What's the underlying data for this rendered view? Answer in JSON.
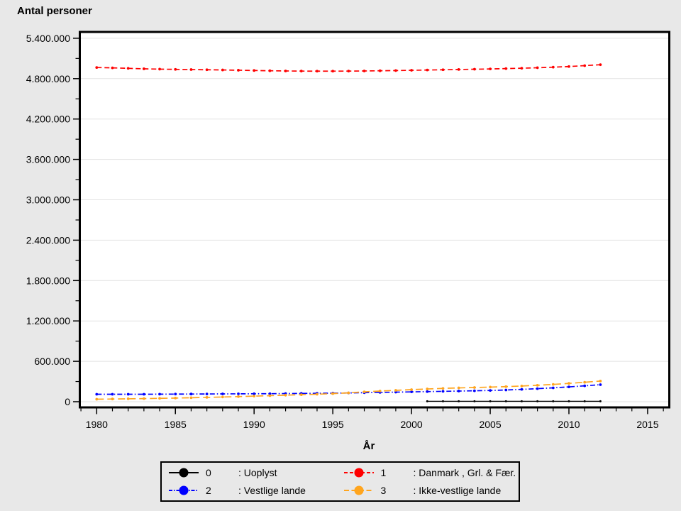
{
  "chart_data": {
    "type": "line",
    "title": "Antal personer",
    "xlabel": "År",
    "ylabel": "Antal personer",
    "x_range": [
      1978.9,
      2016.4
    ],
    "ylim": [
      0,
      5400000
    ],
    "y_ticks_major": [
      0,
      600000,
      1200000,
      1800000,
      2400000,
      3000000,
      3600000,
      4200000,
      4800000,
      5400000
    ],
    "y_minor_step": 300000,
    "x_ticks_major": [
      1980,
      1985,
      1990,
      1995,
      2000,
      2005,
      2010,
      2015
    ],
    "x_minor_step": 1,
    "grid": "horizontal-light",
    "legend_position": "bottom-center",
    "x": [
      1980,
      1981,
      1982,
      1983,
      1984,
      1985,
      1986,
      1987,
      1988,
      1989,
      1990,
      1991,
      1992,
      1993,
      1994,
      1995,
      1996,
      1997,
      1998,
      1999,
      2000,
      2001,
      2002,
      2003,
      2004,
      2005,
      2006,
      2007,
      2008,
      2009,
      2010,
      2011,
      2012
    ],
    "series": [
      {
        "number": "0",
        "name": "Uoplyst",
        "legend_label": ": Uoplyst",
        "color": "#000000",
        "dash": "solid",
        "marker": "circle",
        "x": [
          2001,
          2002,
          2003,
          2004,
          2005,
          2006,
          2007,
          2008,
          2009,
          2010,
          2011,
          2012
        ],
        "values": [
          6000,
          6000,
          6000,
          6000,
          6000,
          6000,
          6000,
          6000,
          6000,
          6000,
          6000,
          6000
        ]
      },
      {
        "number": "1",
        "name": "Danmark , Grl. & Fær.",
        "legend_label": ": Danmark , Grl. & Fær.",
        "color": "#ff0000",
        "dash": "dashed",
        "marker": "circle",
        "values": [
          4965000,
          4960000,
          4953000,
          4946000,
          4941000,
          4938000,
          4935000,
          4932000,
          4929000,
          4925000,
          4921000,
          4917000,
          4914000,
          4912000,
          4911000,
          4911000,
          4912000,
          4914000,
          4917000,
          4920000,
          4924000,
          4928000,
          4932000,
          4936000,
          4940000,
          4944000,
          4949000,
          4955000,
          4962000,
          4970000,
          4980000,
          4993000,
          5007000
        ]
      },
      {
        "number": "2",
        "name": "Vestlige lande",
        "legend_label": ": Vestlige lande",
        "color": "#0000ff",
        "dash": "dash-dot",
        "marker": "circle",
        "values": [
          111000,
          111000,
          111000,
          111000,
          112000,
          113000,
          114000,
          115000,
          116000,
          117000,
          118000,
          119000,
          121000,
          123000,
          125000,
          127000,
          130000,
          134000,
          138000,
          142000,
          146000,
          150000,
          154000,
          158000,
          162000,
          167000,
          174000,
          183000,
          194000,
          206000,
          220000,
          236000,
          253000
        ]
      },
      {
        "number": "3",
        "name": "Ikke-vestlige lande",
        "legend_label": ": Ikke-vestlige lande",
        "color": "#ffa51e",
        "dash": "long-dash",
        "marker": "circle",
        "values": [
          37000,
          40000,
          43000,
          46000,
          50000,
          54000,
          59000,
          64000,
          70000,
          76000,
          83000,
          90000,
          97000,
          104000,
          111000,
          120000,
          132000,
          146000,
          158000,
          169000,
          179000,
          189000,
          198000,
          205000,
          211000,
          217000,
          224000,
          233000,
          244000,
          257000,
          272000,
          289000,
          307000
        ]
      }
    ],
    "colors": {
      "background": "#e8e8e8",
      "plot_background": "#ffffff",
      "gridline": "#e2e2e2",
      "axis": "#000000"
    }
  }
}
